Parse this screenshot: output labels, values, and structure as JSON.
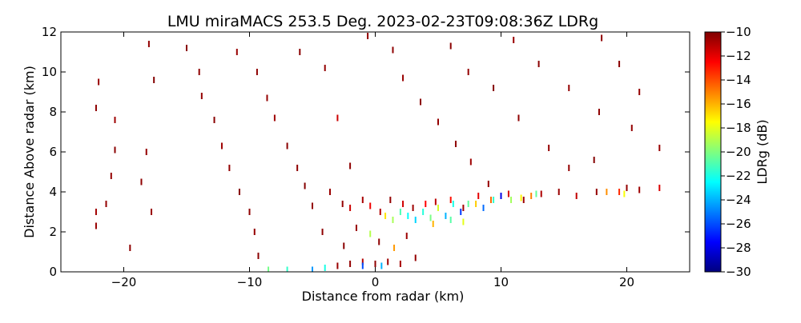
{
  "chart_data": {
    "type": "scatter",
    "title": "LMU miraMACS 253.5 Deg. 2023-02-23T09:08:36Z  LDRg",
    "xlabel": "Distance from radar (km)",
    "ylabel": "Distance Above radar  (km)",
    "xlim": [
      -25,
      25
    ],
    "ylim": [
      0,
      12
    ],
    "xticks": [
      -20,
      -10,
      0,
      10,
      20
    ],
    "xtick_labels": [
      "−20",
      "−10",
      "0",
      "10",
      "20"
    ],
    "yticks": [
      0,
      2,
      4,
      6,
      8,
      10,
      12
    ],
    "ytick_labels": [
      "0",
      "2",
      "4",
      "6",
      "8",
      "10",
      "12"
    ],
    "colorbar": {
      "label": "LDRg (dB)",
      "range": [
        -30,
        -10
      ],
      "colormap": "jet",
      "ticks": [
        -10,
        -12,
        -14,
        -16,
        -18,
        -20,
        -22,
        -24,
        -26,
        -28,
        -30
      ],
      "tick_labels": [
        "−10",
        "−12",
        "−14",
        "−16",
        "−18",
        "−20",
        "−22",
        "−24",
        "−26",
        "−28",
        "−30"
      ]
    },
    "series": [
      {
        "values": [
          [
            -22.0,
            9.5,
            -10.5
          ],
          [
            -22.2,
            8.2,
            -10.3
          ],
          [
            -20.7,
            7.6,
            -10.6
          ],
          [
            -20.7,
            6.1,
            -10.2
          ],
          [
            -21.0,
            4.8,
            -10.4
          ],
          [
            -21.4,
            3.4,
            -10.4
          ],
          [
            -22.2,
            3.0,
            -10.7
          ],
          [
            -22.2,
            2.3,
            -10.5
          ],
          [
            -19.5,
            1.2,
            -10.3
          ],
          [
            -18.0,
            11.4,
            -10.4
          ],
          [
            -17.6,
            9.6,
            -10.1
          ],
          [
            -18.2,
            6.0,
            -10.4
          ],
          [
            -18.6,
            4.5,
            -10.3
          ],
          [
            -17.8,
            3.0,
            -10.5
          ],
          [
            -15.0,
            11.2,
            -10.2
          ],
          [
            -14.0,
            10.0,
            -10.3
          ],
          [
            -13.8,
            8.8,
            -10.4
          ],
          [
            -12.8,
            7.6,
            -10.2
          ],
          [
            -12.2,
            6.3,
            -10.6
          ],
          [
            -11.6,
            5.2,
            -10.4
          ],
          [
            -10.8,
            4.0,
            -10.1
          ],
          [
            -10.0,
            3.0,
            -10.3
          ],
          [
            -9.6,
            2.0,
            -10.4
          ],
          [
            -9.3,
            0.8,
            -10.2
          ],
          [
            -11.0,
            11.0,
            -10.5
          ],
          [
            -9.4,
            10.0,
            -10.3
          ],
          [
            -8.6,
            8.7,
            -10.4
          ],
          [
            -8.0,
            7.7,
            -10.6
          ],
          [
            -7.0,
            6.3,
            -10.2
          ],
          [
            -6.2,
            5.2,
            -10.3
          ],
          [
            -5.6,
            4.3,
            -10.1
          ],
          [
            -5.0,
            3.3,
            -10.4
          ],
          [
            -4.2,
            2.0,
            -10.3
          ],
          [
            -6.0,
            11.0,
            -10.2
          ],
          [
            -4.0,
            10.2,
            -10.4
          ],
          [
            -3.0,
            7.7,
            -11.5
          ],
          [
            -2.0,
            5.3,
            -10.3
          ],
          [
            -0.6,
            11.8,
            -10.4
          ],
          [
            1.4,
            11.1,
            -10.3
          ],
          [
            2.2,
            9.7,
            -10.5
          ],
          [
            3.6,
            8.5,
            -10.2
          ],
          [
            5.0,
            7.5,
            -10.4
          ],
          [
            6.4,
            6.4,
            -10.3
          ],
          [
            7.6,
            5.5,
            -10.6
          ],
          [
            9.0,
            4.4,
            -10.4
          ],
          [
            6.0,
            11.3,
            -10.2
          ],
          [
            7.4,
            10.0,
            -10.4
          ],
          [
            9.4,
            9.2,
            -10.1
          ],
          [
            11.4,
            7.7,
            -10.3
          ],
          [
            13.8,
            6.2,
            -10.4
          ],
          [
            15.4,
            5.2,
            -10.4
          ],
          [
            11.0,
            11.6,
            -10.5
          ],
          [
            13.0,
            10.4,
            -10.2
          ],
          [
            15.4,
            9.2,
            -10.4
          ],
          [
            17.8,
            8.0,
            -10.3
          ],
          [
            20.4,
            7.2,
            -10.4
          ],
          [
            22.6,
            6.2,
            -10.5
          ],
          [
            18.0,
            11.7,
            -10.3
          ],
          [
            19.4,
            10.4,
            -10.2
          ],
          [
            21.0,
            9.0,
            -10.4
          ],
          [
            17.4,
            5.6,
            -10.1
          ],
          [
            20.0,
            4.2,
            -10.4
          ],
          [
            -3.6,
            4.0,
            -10.5
          ],
          [
            -2.6,
            3.4,
            -10.4
          ],
          [
            -2.0,
            3.2,
            -11.5
          ],
          [
            -1.0,
            3.6,
            -10.8
          ],
          [
            -0.4,
            3.3,
            -12.2
          ],
          [
            0.4,
            3.0,
            -11.0
          ],
          [
            1.2,
            3.6,
            -10.4
          ],
          [
            2.2,
            3.4,
            -11.6
          ],
          [
            3.0,
            3.2,
            -10.6
          ],
          [
            4.0,
            3.4,
            -12.5
          ],
          [
            4.8,
            3.5,
            -11.2
          ],
          [
            6.0,
            3.6,
            -12.8
          ],
          [
            7.0,
            3.2,
            -10.7
          ],
          [
            8.2,
            3.8,
            -12.0
          ],
          [
            9.2,
            3.6,
            -14.5
          ],
          [
            10.6,
            3.9,
            -11.7
          ],
          [
            11.8,
            3.6,
            -10.6
          ],
          [
            13.2,
            3.9,
            -10.9
          ],
          [
            14.6,
            4.0,
            -10.5
          ],
          [
            16.0,
            3.8,
            -11.3
          ],
          [
            17.6,
            4.0,
            -10.4
          ],
          [
            19.4,
            4.0,
            -13.3
          ],
          [
            21.0,
            4.1,
            -10.6
          ],
          [
            22.6,
            4.2,
            -11.8
          ],
          [
            0.8,
            2.8,
            -17.0
          ],
          [
            1.4,
            2.6,
            -19.2
          ],
          [
            2.0,
            3.0,
            -21.0
          ],
          [
            2.6,
            2.8,
            -22.4
          ],
          [
            3.2,
            2.6,
            -23.3
          ],
          [
            3.8,
            3.0,
            -21.8
          ],
          [
            4.4,
            2.7,
            -20.1
          ],
          [
            5.0,
            3.2,
            -18.3
          ],
          [
            5.6,
            2.8,
            -24.0
          ],
          [
            6.2,
            3.4,
            -22.0
          ],
          [
            6.8,
            3.0,
            -26.4
          ],
          [
            7.4,
            3.4,
            -20.6
          ],
          [
            8.0,
            3.4,
            -16.5
          ],
          [
            8.6,
            3.2,
            -25.4
          ],
          [
            9.4,
            3.6,
            -21.5
          ],
          [
            10.0,
            3.8,
            -28.0
          ],
          [
            10.8,
            3.6,
            -19.3
          ],
          [
            11.6,
            3.7,
            -17.3
          ],
          [
            12.4,
            3.8,
            -15.0
          ],
          [
            12.8,
            3.9,
            -20.5
          ],
          [
            18.4,
            4.0,
            -15.3
          ],
          [
            19.8,
            3.9,
            -17.6
          ],
          [
            4.6,
            2.4,
            -16.0
          ],
          [
            6.0,
            2.6,
            -20.8
          ],
          [
            7.0,
            2.5,
            -18.0
          ],
          [
            -4.0,
            0.2,
            -22.0
          ],
          [
            -5.0,
            0.1,
            -24.5
          ],
          [
            -7.0,
            0.1,
            -21.5
          ],
          [
            -8.5,
            0.1,
            -20.2
          ],
          [
            -3.0,
            0.3,
            -10.5
          ],
          [
            -2.0,
            0.4,
            -10.4
          ],
          [
            -1.0,
            0.5,
            -11.0
          ],
          [
            0.0,
            0.4,
            -10.3
          ],
          [
            1.0,
            0.5,
            -10.6
          ],
          [
            2.0,
            0.4,
            -10.8
          ],
          [
            -1.0,
            0.3,
            -26.0
          ],
          [
            0.5,
            0.3,
            -24.0
          ],
          [
            0.3,
            1.5,
            -10.3
          ],
          [
            -0.4,
            1.9,
            -19.0
          ],
          [
            1.5,
            1.2,
            -15.5
          ],
          [
            -1.5,
            2.2,
            -10.5
          ],
          [
            2.5,
            1.8,
            -10.6
          ],
          [
            -2.5,
            1.3,
            -10.2
          ],
          [
            3.2,
            0.7,
            -10.4
          ]
        ]
      }
    ]
  }
}
